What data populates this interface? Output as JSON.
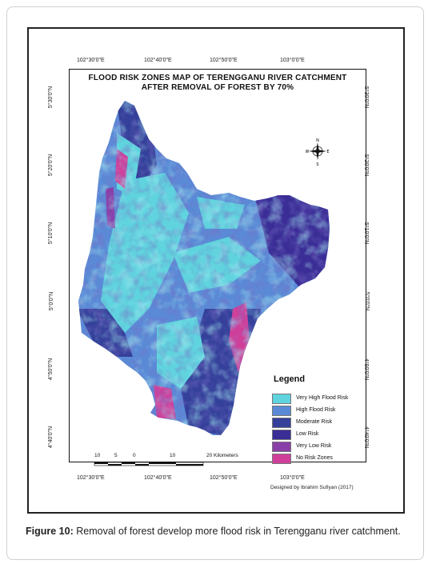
{
  "map": {
    "title_line1": "FLOOD RISK ZONES MAP OF TERENGGANU RIVER CATCHMENT",
    "title_line2": "AFTER REMOVAL OF FOREST BY 70%",
    "top_ticks": [
      "102°30'0\"E",
      "102°40'0\"E",
      "102°50'0\"E",
      "103°0'0\"E"
    ],
    "bottom_ticks": [
      "102°30'0\"E",
      "102°40'0\"E",
      "102°50'0\"E",
      "103°0'0\"E"
    ],
    "left_ticks": [
      "5°30'0\"N",
      "5°20'0\"N",
      "5°10'0\"N",
      "5°0'0\"N",
      "4°50'0\"N",
      "4°40'0\"N"
    ],
    "right_ticks": [
      "5°30'0\"N",
      "5°20'0\"N",
      "5°10'0\"N",
      "5°0'0\"N",
      "4°50'0\"N",
      "4°40'0\"N"
    ],
    "compass": {
      "n": "N",
      "s": "S",
      "e": "E",
      "w": "W"
    },
    "scale": {
      "labels": [
        "10",
        "5",
        "0",
        "10",
        "20 Kilometers"
      ]
    },
    "credit": "Designed by Ibrahim Sufiyan (2017)",
    "legend": {
      "title": "Legend",
      "items": [
        {
          "label": "Very High Flood Risk",
          "color": "#5fd3de"
        },
        {
          "label": "High Flood Risk",
          "color": "#5a8ad6"
        },
        {
          "label": "Moderate Risk",
          "color": "#34409a"
        },
        {
          "label": "Low Risk",
          "color": "#3a2d96"
        },
        {
          "label": "Very Low Risk",
          "color": "#8a3fa8"
        },
        {
          "label": "No Risk Zones",
          "color": "#cf3f9a"
        }
      ]
    }
  },
  "caption": {
    "label": "Figure 10:",
    "text": " Removal of forest develop more flood risk in Terengganu river catchment."
  }
}
